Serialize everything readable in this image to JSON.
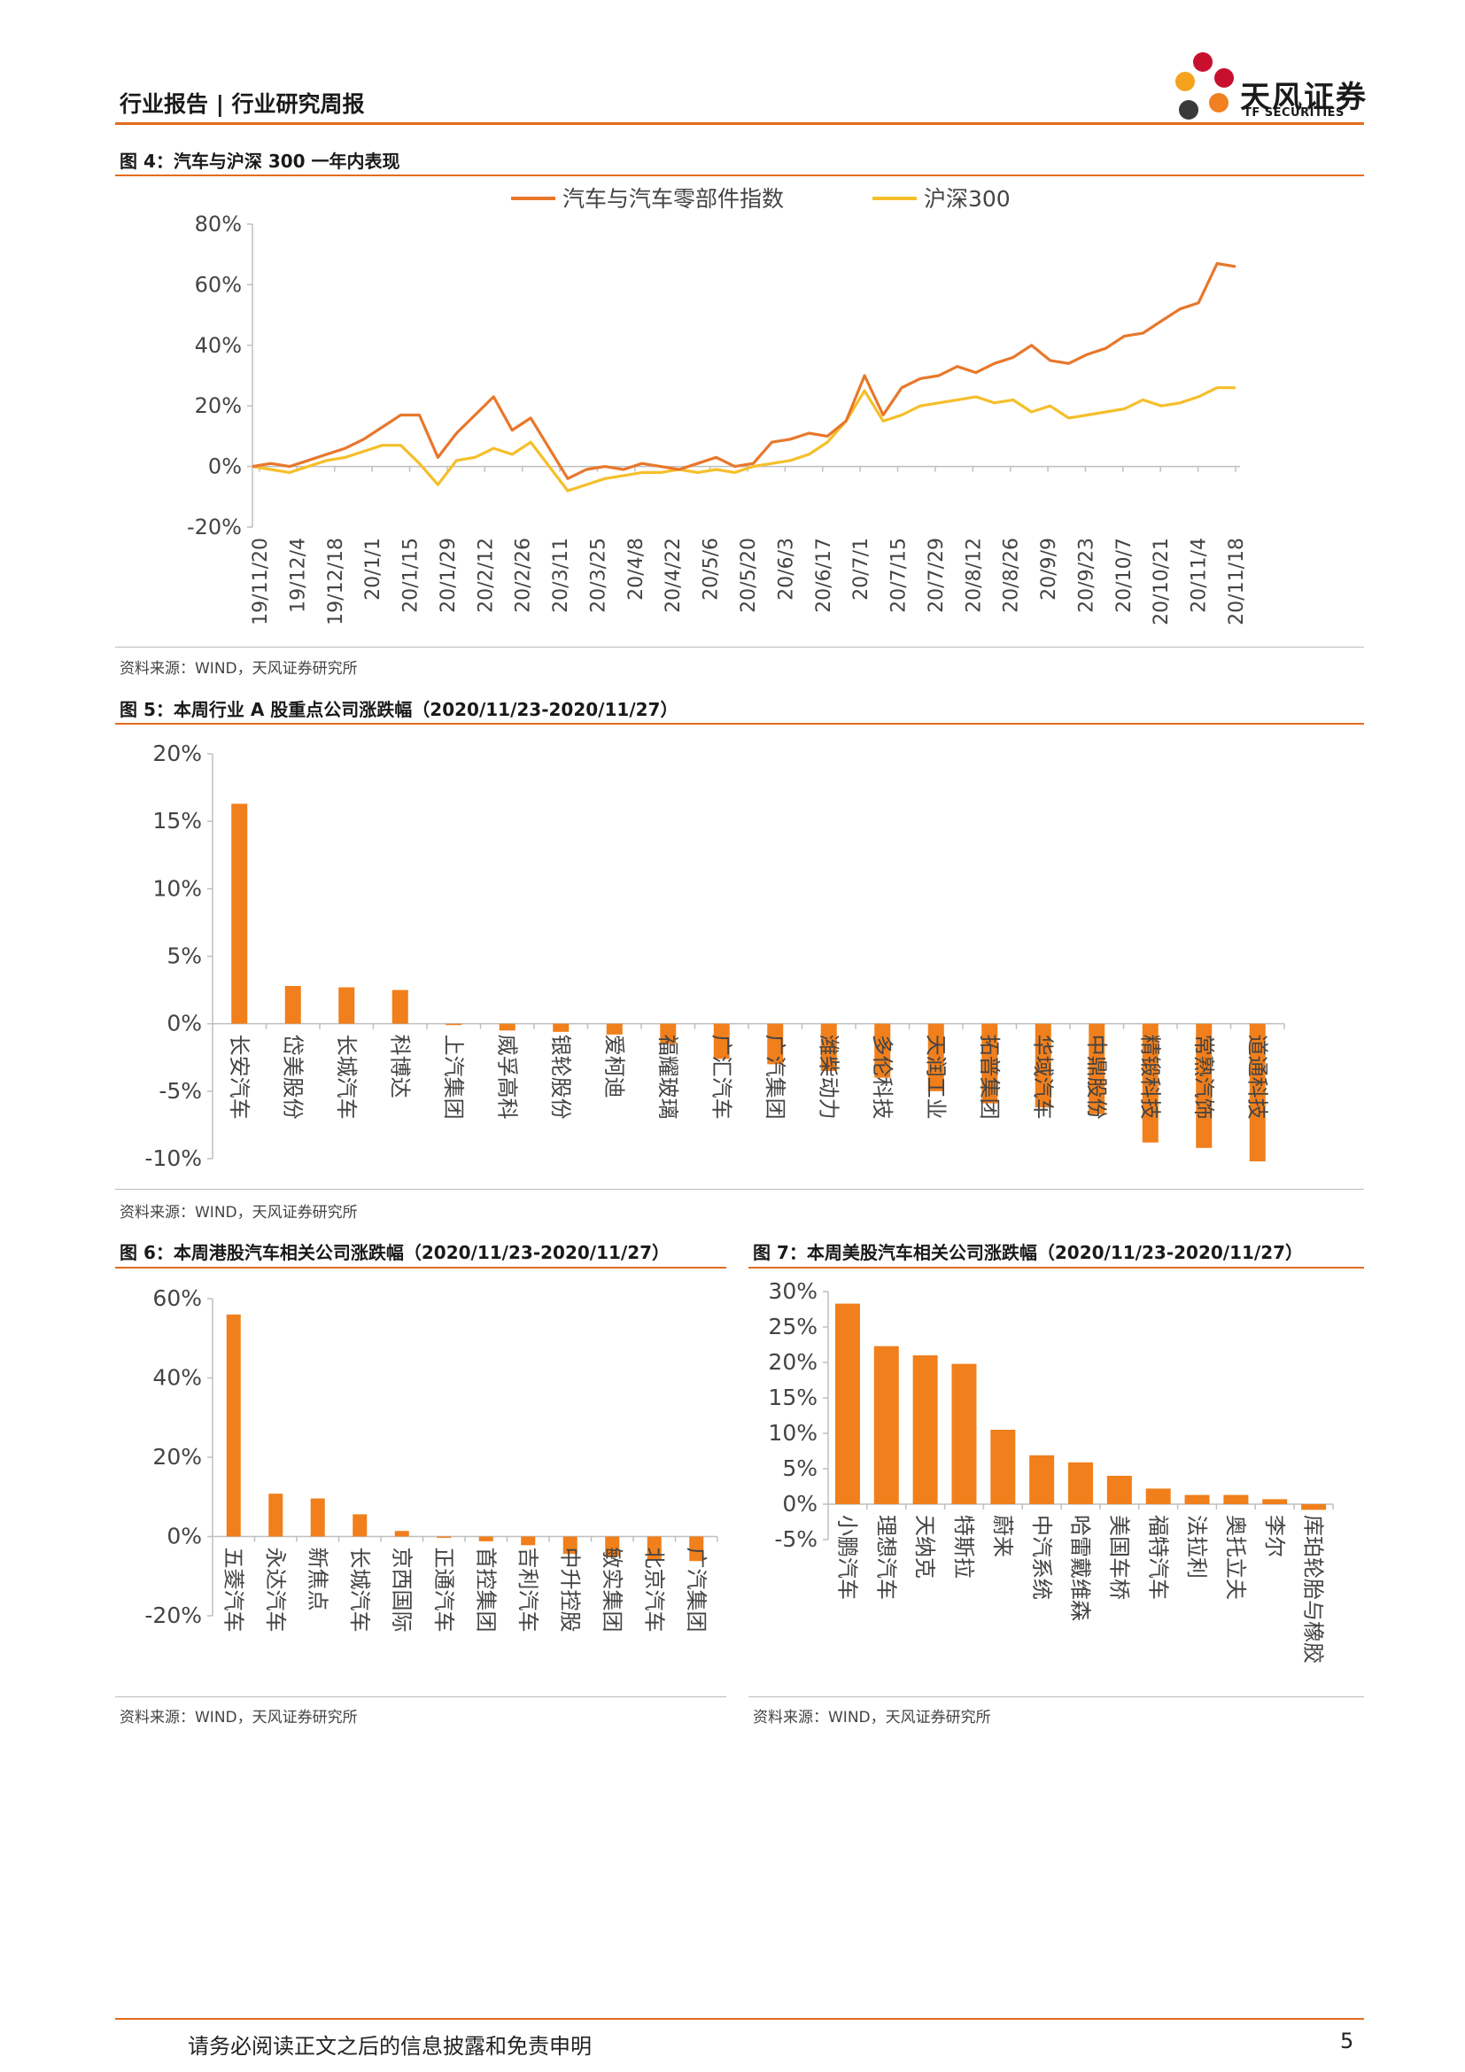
{
  "header": {
    "title": "行业报告 | 行业研究周报",
    "logo_cn": "天风证券",
    "logo_en": "TF SECURITIES"
  },
  "colors": {
    "accent": "#e36c1d",
    "bar": "#f07f1c",
    "line_auto": "#e8772b",
    "line_hs300": "#f5bf2a"
  },
  "figures": [
    {
      "title": "图 4：汽车与沪深 300 一年内表现",
      "source": "资料来源：WIND，天风证券研究所"
    },
    {
      "title": "图 5：本周行业 A 股重点公司涨跌幅（2020/11/23-2020/11/27）",
      "source": "资料来源：WIND，天风证券研究所"
    },
    {
      "title": "图 6：本周港股汽车相关公司涨跌幅（2020/11/23-2020/11/27）",
      "source": "资料来源：WIND，天风证券研究所"
    },
    {
      "title": "图 7：本周美股汽车相关公司涨跌幅（2020/11/23-2020/11/27）",
      "source": "资料来源：WIND，天风证券研究所"
    }
  ],
  "footer": {
    "text": "请务必阅读正文之后的信息披露和免责申明",
    "page": "5"
  },
  "chart_data": [
    {
      "type": "line",
      "legend": [
        "汽车与汽车零部件指数",
        "沪深300"
      ],
      "ylim": [
        -20,
        80
      ],
      "yticks": [
        "-20%",
        "0%",
        "20%",
        "40%",
        "60%",
        "80%"
      ],
      "xticks": [
        "19/11/20",
        "19/12/4",
        "19/12/18",
        "20/1/1",
        "20/1/15",
        "20/1/29",
        "20/2/12",
        "20/2/26",
        "20/3/11",
        "20/3/25",
        "20/4/8",
        "20/4/22",
        "20/5/6",
        "20/5/20",
        "20/6/3",
        "20/6/17",
        "20/7/1",
        "20/7/15",
        "20/7/29",
        "20/8/12",
        "20/8/26",
        "20/9/9",
        "20/9/23",
        "20/10/7",
        "20/10/21",
        "20/11/4",
        "20/11/18"
      ],
      "x": [
        "19/11/20",
        "19/11/27",
        "19/12/4",
        "19/12/11",
        "19/12/18",
        "19/12/25",
        "20/1/1",
        "20/1/8",
        "20/1/15",
        "20/1/22",
        "20/1/29",
        "20/2/5",
        "20/2/12",
        "20/2/19",
        "20/2/26",
        "20/3/4",
        "20/3/11",
        "20/3/18",
        "20/3/25",
        "20/4/1",
        "20/4/8",
        "20/4/15",
        "20/4/22",
        "20/4/29",
        "20/5/6",
        "20/5/13",
        "20/5/20",
        "20/5/27",
        "20/6/3",
        "20/6/10",
        "20/6/17",
        "20/6/24",
        "20/7/1",
        "20/7/8",
        "20/7/15",
        "20/7/22",
        "20/7/29",
        "20/8/5",
        "20/8/12",
        "20/8/19",
        "20/8/26",
        "20/9/2",
        "20/9/9",
        "20/9/16",
        "20/9/23",
        "20/9/30",
        "20/10/7",
        "20/10/14",
        "20/10/21",
        "20/10/28",
        "20/11/4",
        "20/11/11",
        "20/11/18",
        "20/11/25"
      ],
      "series": [
        {
          "name": "汽车与汽车零部件指数",
          "values": [
            0,
            1,
            0,
            2,
            4,
            6,
            9,
            13,
            17,
            17,
            3,
            11,
            17,
            23,
            12,
            16,
            6,
            -4,
            -1,
            0,
            -1,
            1,
            0,
            -1,
            1,
            3,
            0,
            1,
            8,
            9,
            11,
            10,
            15,
            30,
            17,
            26,
            29,
            30,
            33,
            31,
            34,
            36,
            40,
            35,
            34,
            37,
            39,
            43,
            44,
            48,
            52,
            54,
            67,
            66
          ]
        },
        {
          "name": "沪深300",
          "values": [
            0,
            -1,
            -2,
            0,
            2,
            3,
            5,
            7,
            7,
            1,
            -6,
            2,
            3,
            6,
            4,
            8,
            0,
            -8,
            -6,
            -4,
            -3,
            -2,
            -2,
            -1,
            -2,
            -1,
            -2,
            0,
            1,
            2,
            4,
            8,
            15,
            25,
            15,
            17,
            20,
            21,
            22,
            23,
            21,
            22,
            18,
            20,
            16,
            17,
            18,
            19,
            22,
            20,
            21,
            23,
            26,
            26
          ]
        }
      ]
    },
    {
      "type": "bar",
      "ylim": [
        -10,
        20
      ],
      "yticks": [
        "-10%",
        "-5%",
        "0%",
        "5%",
        "10%",
        "15%",
        "20%"
      ],
      "categories": [
        "长安汽车",
        "岱美股份",
        "长城汽车",
        "科博达",
        "上汽集团",
        "威孚高科",
        "银轮股份",
        "爱柯迪",
        "福耀玻璃",
        "广汇汽车",
        "广汽集团",
        "潍柴动力",
        "多伦科技",
        "天润工业",
        "拓普集团",
        "华域汽车",
        "中鼎股份",
        "精锻科技",
        "常熟汽饰",
        "道通科技"
      ],
      "values": [
        16.3,
        2.8,
        2.7,
        2.5,
        -0.1,
        -0.5,
        -0.6,
        -0.8,
        -1.5,
        -2.6,
        -3.0,
        -3.5,
        -4.0,
        -5.0,
        -5.9,
        -6.2,
        -6.7,
        -8.8,
        -9.2,
        -10.2
      ]
    },
    {
      "type": "bar",
      "ylim": [
        -20,
        60
      ],
      "yticks": [
        "-20%",
        "0%",
        "20%",
        "40%",
        "60%"
      ],
      "categories": [
        "五菱汽车",
        "永达汽车",
        "新焦点",
        "长城汽车",
        "京西国际",
        "正通汽车",
        "首控集团",
        "吉利汽车",
        "中升控股",
        "敏实集团",
        "北京汽车",
        "广汽集团"
      ],
      "values": [
        56.0,
        10.8,
        9.6,
        5.6,
        1.4,
        0.0,
        -1.2,
        -2.2,
        -4.4,
        -5.0,
        -5.7,
        -6.2
      ]
    },
    {
      "type": "bar",
      "ylim": [
        -5,
        30
      ],
      "yticks": [
        "-5%",
        "0%",
        "5%",
        "10%",
        "15%",
        "20%",
        "25%",
        "30%"
      ],
      "categories": [
        "小鹏汽车",
        "理想汽车",
        "天纳克",
        "特斯拉",
        "蔚来",
        "中汽系统",
        "哈雷戴维森",
        "美国车桥",
        "福特汽车",
        "法拉利",
        "奥托立夫",
        "李尔",
        "库珀轮胎与橡胶"
      ],
      "values": [
        28.3,
        22.3,
        21.0,
        19.8,
        10.5,
        6.9,
        5.9,
        4.0,
        2.2,
        1.3,
        1.3,
        0.7,
        -0.8
      ]
    }
  ]
}
